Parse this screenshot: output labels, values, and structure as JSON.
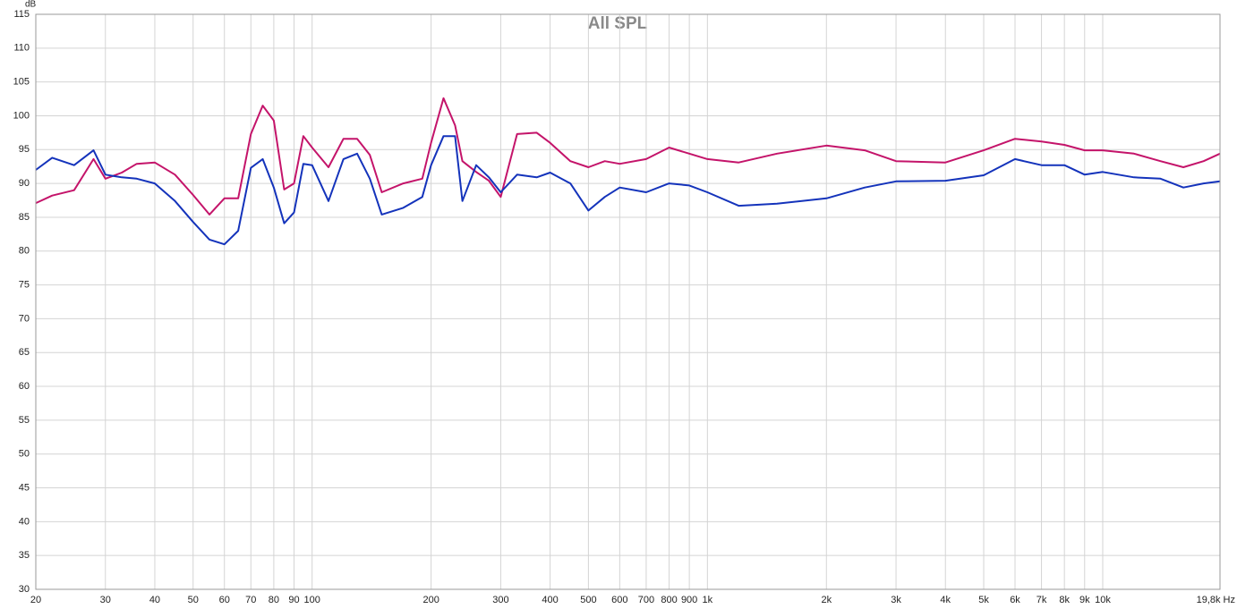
{
  "chart_data": {
    "type": "line",
    "title": "All SPL",
    "ylabel": "dB",
    "xscale": "log",
    "grid": true,
    "x": [
      20,
      22,
      25,
      28,
      30,
      33,
      36,
      40,
      45,
      50,
      55,
      60,
      65,
      70,
      75,
      80,
      85,
      90,
      95,
      100,
      110,
      120,
      130,
      140,
      150,
      170,
      190,
      200,
      215,
      230,
      240,
      260,
      280,
      300,
      330,
      370,
      400,
      450,
      500,
      550,
      600,
      700,
      800,
      900,
      1000,
      1200,
      1500,
      2000,
      2500,
      3000,
      4000,
      5000,
      6000,
      7000,
      8000,
      9000,
      10000,
      12000,
      14000,
      16000,
      18000,
      19800
    ],
    "series": [
      {
        "color": "#c4146a",
        "values": [
          87.1,
          88.2,
          89.0,
          93.6,
          90.7,
          91.6,
          92.9,
          93.1,
          91.3,
          88.3,
          85.4,
          87.8,
          87.8,
          97.3,
          101.5,
          99.3,
          89.1,
          90.0,
          97.0,
          95.3,
          92.4,
          96.6,
          96.6,
          94.2,
          88.7,
          90.0,
          90.7,
          96.0,
          102.6,
          98.6,
          93.3,
          91.7,
          90.4,
          88.0,
          97.3,
          97.5,
          96.0,
          93.3,
          92.4,
          93.3,
          92.9,
          93.6,
          95.3,
          94.4,
          93.6,
          93.1,
          94.4,
          95.6,
          94.9,
          93.3,
          93.1,
          94.9,
          96.6,
          96.2,
          95.7,
          94.9,
          94.9,
          94.4,
          93.3,
          92.4,
          93.3,
          94.4
        ]
      },
      {
        "color": "#1433bb",
        "values": [
          92.0,
          93.8,
          92.7,
          94.9,
          91.3,
          90.9,
          90.7,
          90.0,
          87.4,
          84.3,
          81.7,
          81.0,
          83.0,
          92.3,
          93.6,
          89.4,
          84.1,
          85.7,
          92.9,
          92.7,
          87.4,
          93.6,
          94.4,
          90.7,
          85.4,
          86.4,
          88.0,
          92.7,
          97.0,
          97.0,
          87.4,
          92.7,
          90.9,
          88.7,
          91.3,
          90.9,
          91.6,
          90.0,
          86.0,
          88.0,
          89.4,
          88.7,
          90.0,
          89.7,
          88.7,
          86.7,
          87.0,
          87.8,
          89.4,
          90.3,
          90.4,
          91.2,
          93.6,
          92.7,
          92.7,
          91.3,
          91.7,
          90.9,
          90.7,
          89.4,
          90.0,
          90.3
        ]
      }
    ],
    "xlim": [
      20,
      19800
    ],
    "ylim": [
      30,
      115
    ],
    "xticks": [
      20,
      30,
      40,
      50,
      60,
      70,
      80,
      90,
      100,
      200,
      300,
      400,
      500,
      600,
      700,
      800,
      900,
      {
        "value": 1000,
        "label": "1k"
      },
      {
        "value": 2000,
        "label": "2k"
      },
      {
        "value": 3000,
        "label": "3k"
      },
      {
        "value": 4000,
        "label": "4k"
      },
      {
        "value": 5000,
        "label": "5k"
      },
      {
        "value": 6000,
        "label": "6k"
      },
      {
        "value": 7000,
        "label": "7k"
      },
      {
        "value": 8000,
        "label": "8k"
      },
      {
        "value": 9000,
        "label": "9k"
      },
      {
        "value": 10000,
        "label": "10k"
      },
      {
        "value": 19800,
        "label": "19,8k Hz"
      }
    ],
    "yticks": [
      30,
      35,
      40,
      45,
      50,
      55,
      60,
      65,
      70,
      75,
      80,
      85,
      90,
      95,
      100,
      105,
      110,
      115
    ]
  }
}
